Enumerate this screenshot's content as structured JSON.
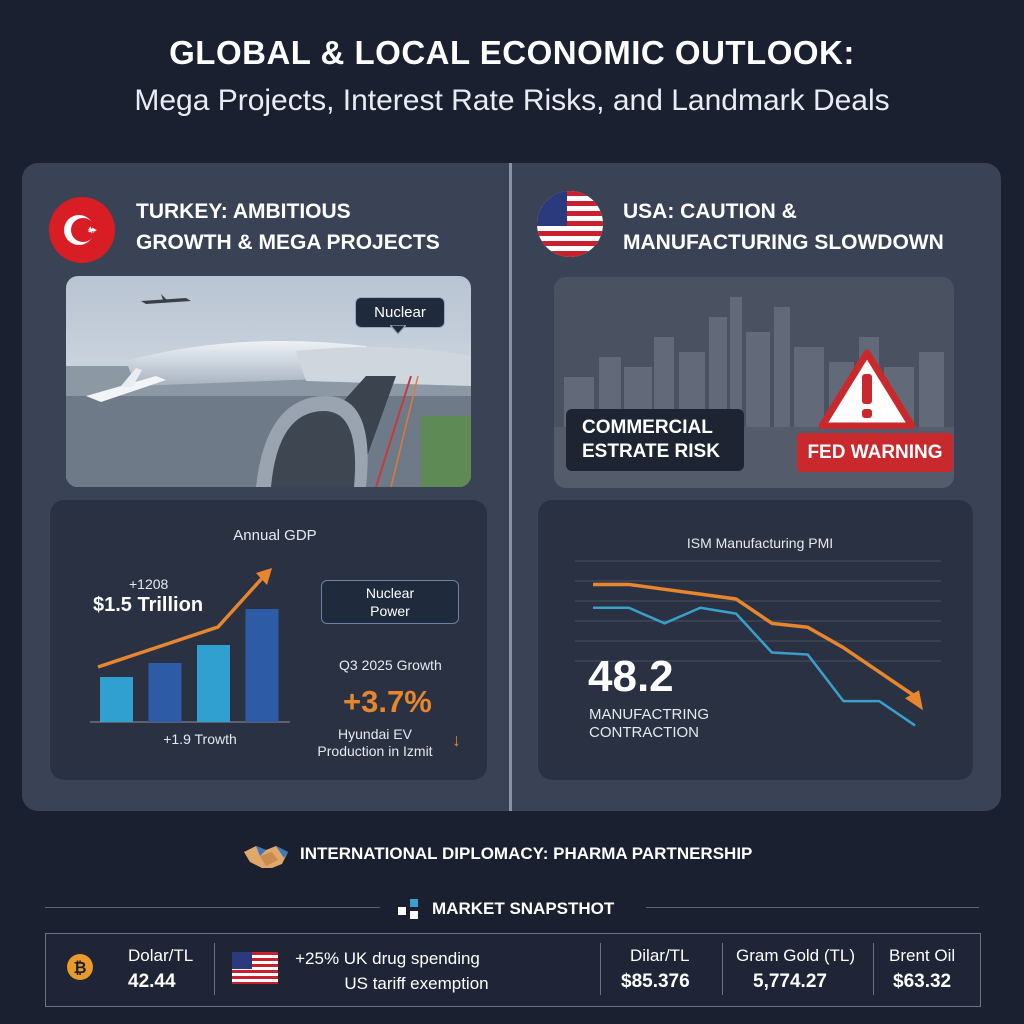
{
  "title": {
    "line1": "GLOBAL & LOCAL ECONOMIC OUTLOOK:",
    "line2": "Mega Projects, Interest Rate Risks, and Landmark Deals"
  },
  "turkey": {
    "header_line1": "TURKEY: AMBITIOUS",
    "header_line2": "GROWTH & MEGA PROJECTS",
    "photo_label": "Nuclear",
    "chart_title": "Annual GDP",
    "growth_small": "+1208",
    "gdp_value": "$1.5 Trillion",
    "bar_caption": "+1.9 Trowth",
    "nuclear_box_line1": "Nuclear",
    "nuclear_box_line2": "Power",
    "q3_label": "Q3 2025 Growth",
    "q3_value": "+3.7%",
    "hyundai_line1": "Hyundai EV",
    "hyundai_line2": "Production in Izmit",
    "down_arrow": "↓"
  },
  "usa": {
    "header_line1": "USA: CAUTION &",
    "header_line2": "MANUFACTURING SLOWDOWN",
    "estate_line1": "COMMERCIAL",
    "estate_line2": "ESTRATE RISK",
    "fed_warning": "FED WARNING",
    "chart_title": "ISM Manufacturing PMI",
    "pmi_value": "48.2",
    "pmi_caption_line1": "MANUFACTRING",
    "pmi_caption_line2": "CONTRACTION"
  },
  "diplomacy": {
    "label": "INTERNATIONAL DIPLOMACY: PHARMA PARTNERSHIP"
  },
  "market": {
    "title": "MARKET SNAPSTHOT",
    "items": [
      {
        "label": "Dolar/TL",
        "value": "42.44"
      },
      {
        "line1": "+25% UK drug spending",
        "line2": "US tariff exemption"
      },
      {
        "label": "Dilar/TL",
        "value": "$85.376"
      },
      {
        "label": "Gram Gold (TL)",
        "value": "5,774.27"
      },
      {
        "label": "Brent Oil",
        "value": "$63.32"
      }
    ]
  },
  "chart_data": [
    {
      "type": "bar",
      "title": "Annual GDP",
      "categories": [
        "",
        "",
        "",
        ""
      ],
      "values": [
        45,
        59,
        77,
        113
      ],
      "trend": [
        20,
        42,
        70,
        148
      ],
      "ylim": [
        0,
        160
      ]
    },
    {
      "type": "line",
      "title": "ISM Manufacturing PMI",
      "x": [
        0,
        1,
        2,
        3,
        4,
        5,
        6,
        7,
        8,
        9
      ],
      "series": [
        {
          "values": [
            53.6,
            53.6,
            52.0,
            53.6,
            53.0,
            49.0,
            48.8,
            44.0,
            44.0,
            41.5
          ]
        },
        {
          "values": [
            56.0,
            56.0,
            55.5,
            55.0,
            54.5,
            52.0,
            51.6,
            49.5,
            47.0,
            44.5
          ]
        }
      ],
      "ylim": [
        40,
        58
      ],
      "colors": [
        "#3aa0c9",
        "#e8862e"
      ]
    }
  ],
  "colors": {
    "accent_orange": "#e8862e",
    "bar_cyan": "#2fa0cf",
    "bar_blue": "#2e5ba6",
    "pmi_cyan": "#3aa0c9",
    "warning_red": "#c9292d"
  }
}
